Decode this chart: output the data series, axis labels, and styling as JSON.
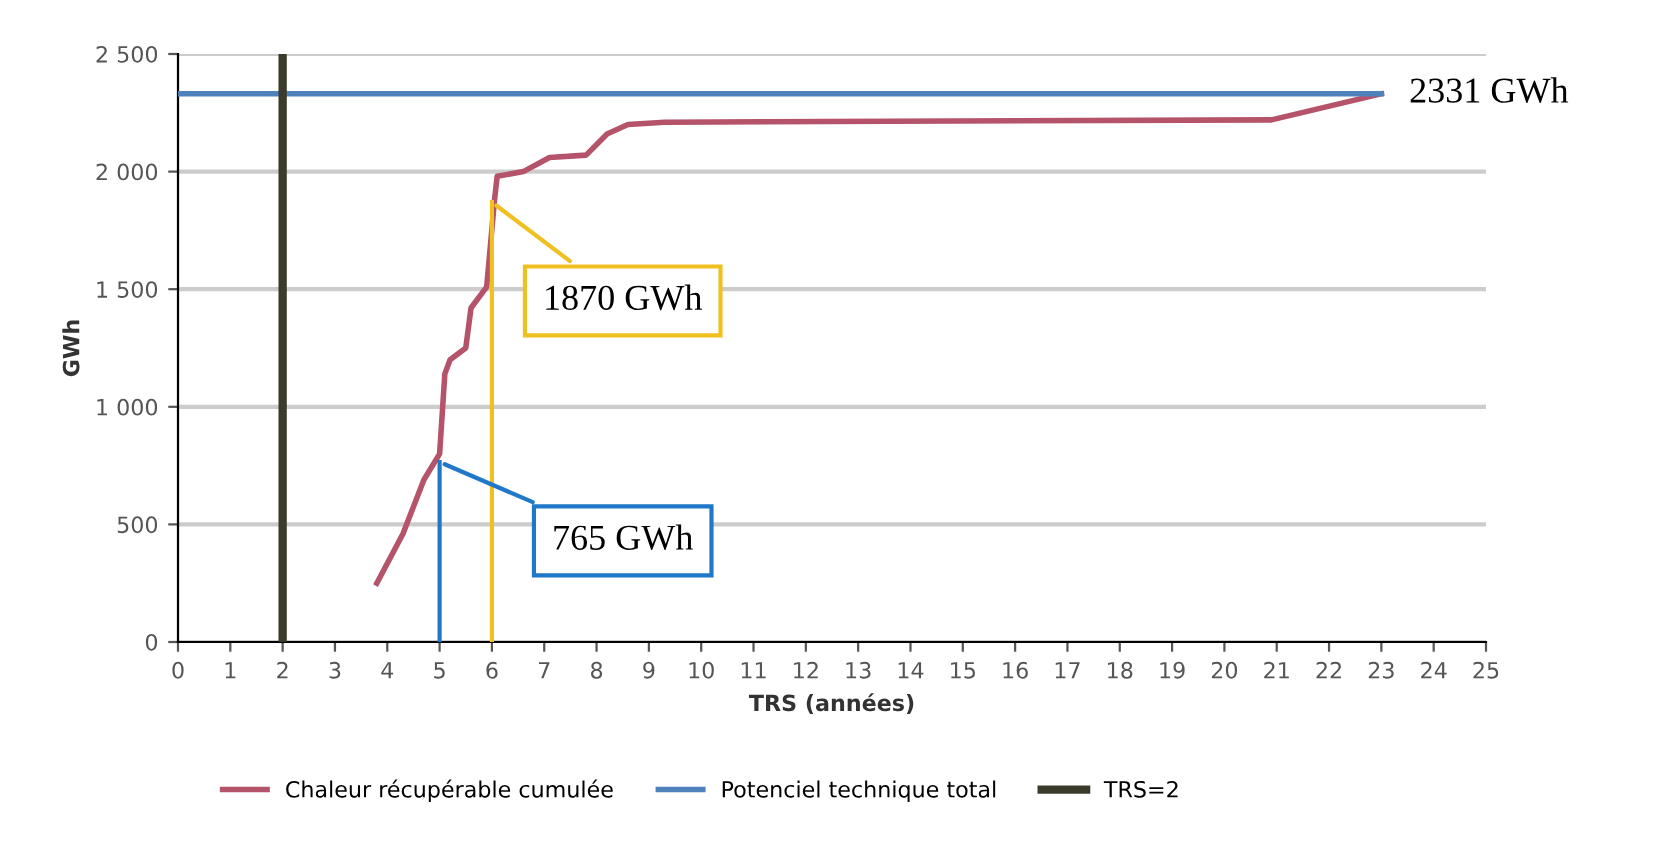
{
  "chart_data": {
    "type": "line",
    "xlabel": "TRS (années)",
    "ylabel": "GWh",
    "xlim": [
      0,
      25
    ],
    "xticks": [
      0,
      1,
      2,
      3,
      4,
      5,
      6,
      7,
      8,
      9,
      10,
      11,
      12,
      13,
      14,
      15,
      16,
      17,
      18,
      19,
      20,
      21,
      22,
      23,
      24,
      25
    ],
    "ylim": [
      0,
      2500
    ],
    "yticks": [
      {
        "value": 0,
        "label": "0"
      },
      {
        "value": 500,
        "label": "500"
      },
      {
        "value": 1000,
        "label": "1 000"
      },
      {
        "value": 1500,
        "label": "1 500"
      },
      {
        "value": 2000,
        "label": "2 000"
      },
      {
        "value": 2500,
        "label": "2 500"
      }
    ],
    "grid": "y",
    "legend": "bottom",
    "series": [
      {
        "name": "Chaleur récupérable cumulée",
        "color": "#b5536a",
        "x": [
          3.8,
          4.3,
          4.7,
          5.0,
          5.1,
          5.2,
          5.5,
          5.6,
          5.9,
          6.05,
          6.1,
          6.6,
          7.1,
          7.8,
          8.2,
          8.6,
          9.3,
          20.9,
          23
        ],
        "values": [
          250,
          460,
          690,
          800,
          1140,
          1200,
          1250,
          1420,
          1510,
          1880,
          1980,
          2000,
          2060,
          2070,
          2160,
          2200,
          2210,
          2220,
          2331
        ]
      },
      {
        "name": "Potenciel technique total",
        "color": "#4f81bd",
        "x": [
          0,
          23
        ],
        "values": [
          2331,
          2331
        ]
      },
      {
        "name": "TRS=2",
        "color": "#3b3b2b",
        "x": [
          2,
          2
        ],
        "values": [
          0,
          2500
        ]
      },
      {
        "color": "#f0c020",
        "x": [
          6,
          6
        ],
        "values": [
          0,
          1870
        ]
      },
      {
        "color": "#1f78c8",
        "x": [
          5,
          5
        ],
        "values": [
          0,
          765
        ]
      }
    ],
    "annotations": [
      {
        "text": "2331 GWh",
        "x": 23,
        "y": 2331
      },
      {
        "text": "1870 GWh",
        "x": 6,
        "y": 1870
      },
      {
        "text": "765 GWh",
        "x": 5,
        "y": 765
      }
    ]
  }
}
